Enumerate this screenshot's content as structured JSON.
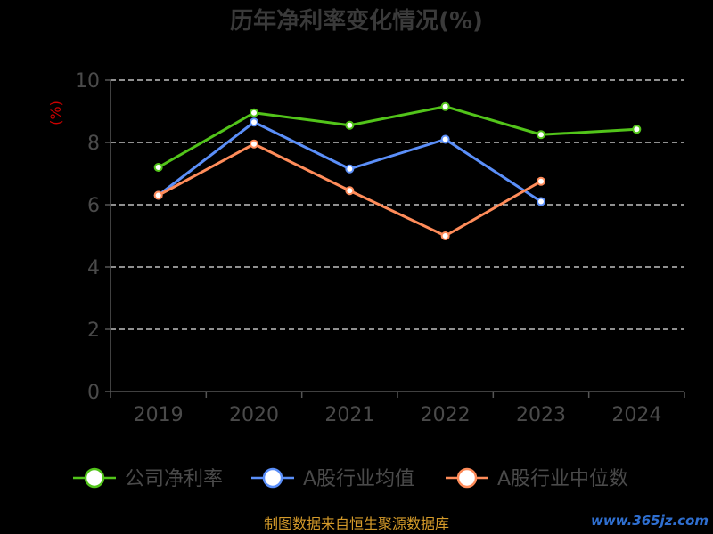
{
  "chart_data": {
    "type": "line",
    "title": "历年净利率变化情况(%)",
    "ylabel": "(%)",
    "xlabel": "",
    "categories": [
      "2019",
      "2020",
      "2021",
      "2022",
      "2023",
      "2024"
    ],
    "ylim": [
      0,
      10
    ],
    "yticks": [
      0,
      2,
      4,
      6,
      8,
      10
    ],
    "grid": true,
    "legend_position": "bottom",
    "series": [
      {
        "name": "公司净利率",
        "color": "#52c41a",
        "values": [
          7.2,
          8.95,
          8.55,
          9.15,
          8.25,
          8.42
        ]
      },
      {
        "name": "A股行业均值",
        "color": "#5b8ff9",
        "values": [
          6.3,
          8.65,
          7.15,
          8.1,
          6.1,
          null
        ]
      },
      {
        "name": "A股行业中位数",
        "color": "#ff8c5a",
        "values": [
          6.3,
          7.95,
          6.45,
          5.0,
          6.75,
          null
        ]
      }
    ]
  },
  "footer": {
    "source": "制图数据来自恒生聚源数据库"
  },
  "watermark": {
    "text": "www.365jz.com"
  }
}
